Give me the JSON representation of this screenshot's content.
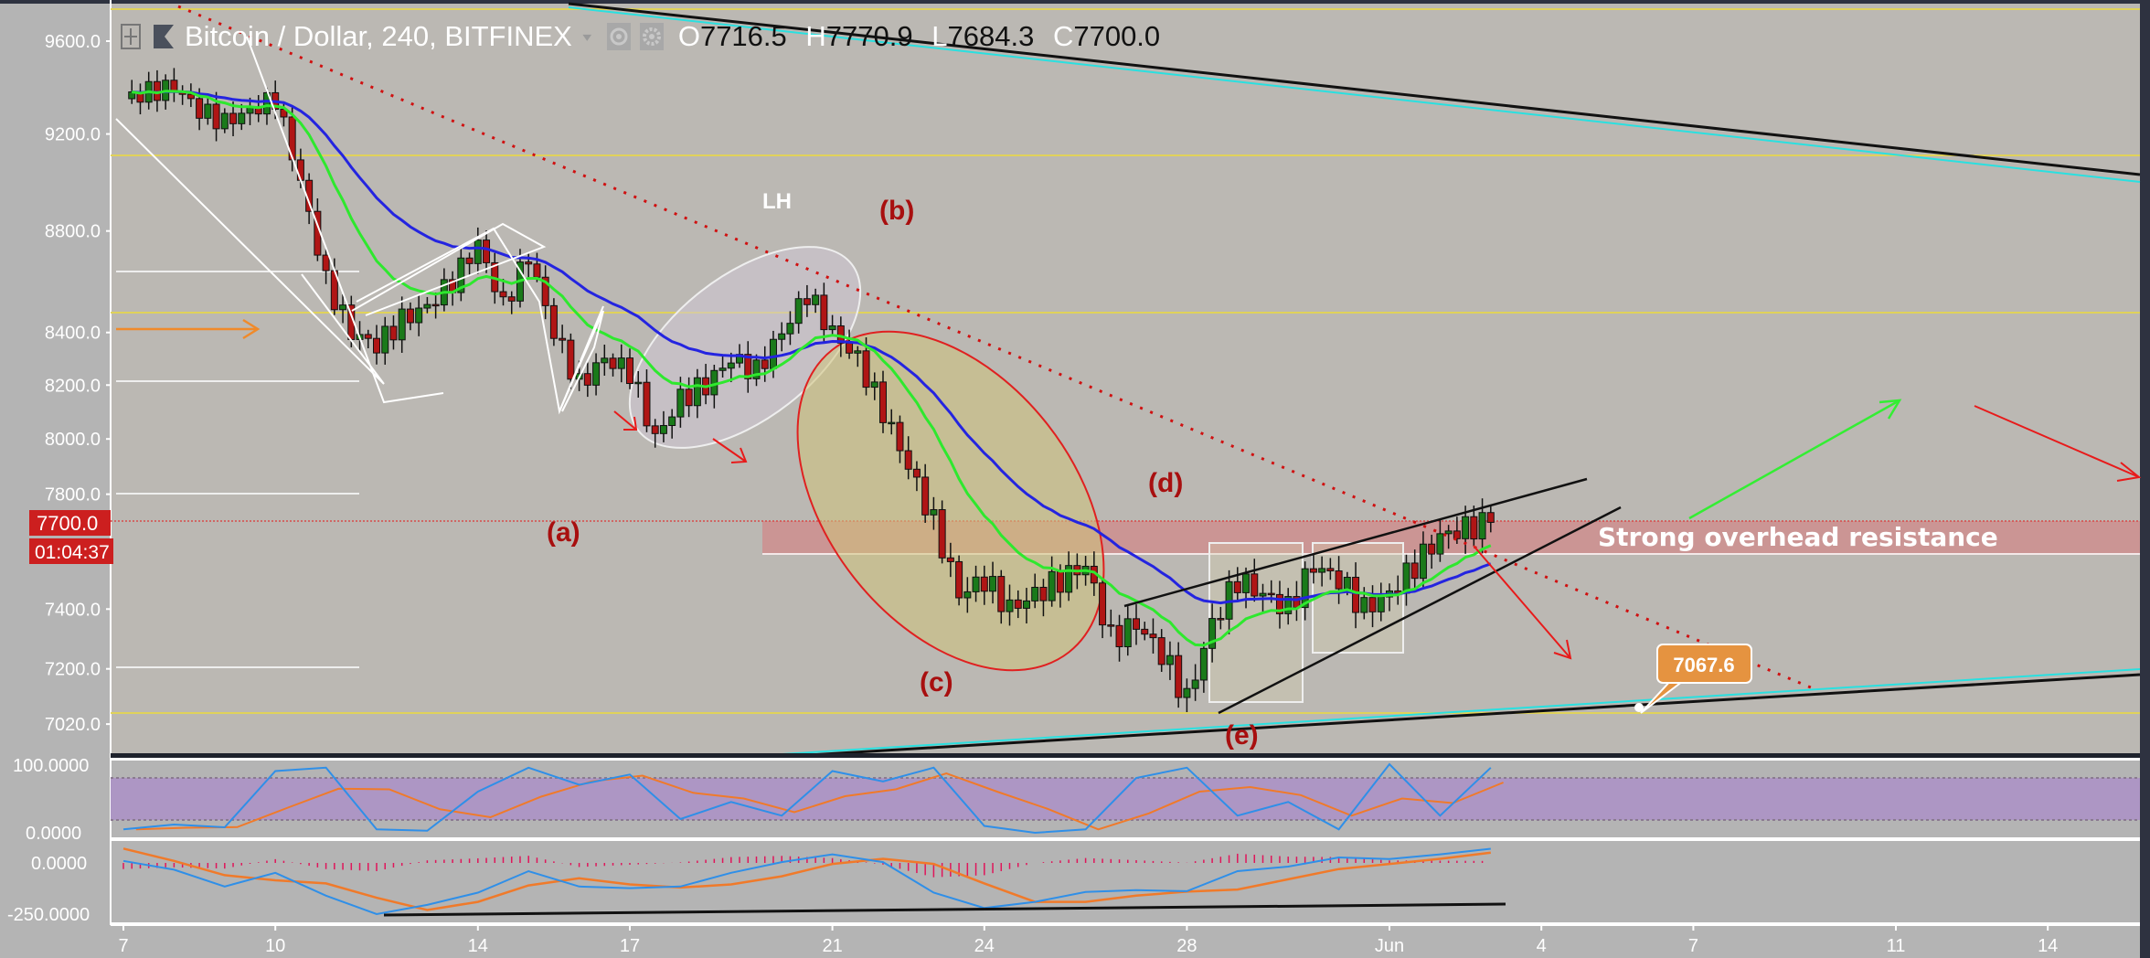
{
  "header": {
    "title": "Bitcoin / Dollar, 240, BITFINEX",
    "ohlc": {
      "o_label": "O",
      "o": "7716.5",
      "h_label": "H",
      "h": "7770.9",
      "l_label": "L",
      "l": "7684.3",
      "c_label": "C",
      "c": "7700.0"
    },
    "icons": [
      "plus-square-icon",
      "flag-icon",
      "dropdown-icon",
      "eye-icon",
      "gear-icon"
    ]
  },
  "price_tag": {
    "price": "7700.0",
    "countdown": "01:04:37"
  },
  "annotations": {
    "a": "(a)",
    "b": "(b)",
    "c": "(c)",
    "d": "(d)",
    "e": "(e)",
    "lh": "LH",
    "resistance": "Strong overhead resistance",
    "callout": "7067.6"
  },
  "colors": {
    "up": "#1a7a1a",
    "down": "#b01515",
    "ma_fast": "#2ee82e",
    "ma_slow": "#2424e0",
    "stoch_k": "#2f8fe8",
    "stoch_d": "#f07a2a",
    "macd_hist": "#e0155a",
    "resistance_zone": "#d08a8a",
    "callout": "#e59340",
    "trend_dotted": "#d01010"
  },
  "chart_data": [
    {
      "type": "candlestick",
      "title": "Bitcoin / Dollar, 240, BITFINEX",
      "y_scale": "log",
      "ylim": [
        7000,
        9700
      ],
      "y_ticks": [
        "9600.0",
        "9200.0",
        "8800.0",
        "8400.0",
        "8200.0",
        "8000.0",
        "7800.0",
        "7400.0",
        "7200.0",
        "7020.0"
      ],
      "x_ticks": [
        "7",
        "10",
        "14",
        "17",
        "21",
        "24",
        "28",
        "Jun",
        "4",
        "7",
        "11",
        "14"
      ],
      "x_tick_dates": [
        "May 7",
        "May 10",
        "May 14",
        "May 17",
        "May 21",
        "May 24",
        "May 28",
        "Jun 1",
        "Jun 4",
        "Jun 7",
        "Jun 11",
        "Jun 14"
      ],
      "close_path": {
        "days_from_may7": [
          0,
          0.5,
          1,
          1.5,
          2,
          2.5,
          3,
          3.5,
          4,
          4.5,
          5,
          5.5,
          6,
          6.5,
          7,
          7.5,
          8,
          8.5,
          9,
          9.5,
          10,
          10.5,
          11,
          11.5,
          12,
          12.5,
          13,
          13.5,
          14,
          14.5,
          15,
          15.5,
          16,
          16.5,
          17,
          17.5,
          18,
          18.5,
          19,
          19.5,
          20,
          20.5,
          21,
          21.5,
          22,
          22.5,
          23,
          23.5,
          24,
          24.5,
          25,
          25.5,
          26,
          26.5,
          27
        ],
        "price": [
          9350,
          9380,
          9400,
          9300,
          9250,
          9300,
          9350,
          9000,
          8600,
          8400,
          8350,
          8450,
          8500,
          8600,
          8750,
          8500,
          8700,
          8400,
          8200,
          8300,
          8250,
          8000,
          8150,
          8200,
          8300,
          8250,
          8400,
          8550,
          8400,
          8300,
          8100,
          7900,
          7700,
          7450,
          7500,
          7400,
          7450,
          7500,
          7550,
          7300,
          7350,
          7250,
          7100,
          7350,
          7500,
          7450,
          7400,
          7550,
          7500,
          7400,
          7450,
          7550,
          7650,
          7680,
          7700
        ]
      },
      "last_price": 7700.0,
      "resistance_zone": [
        7590,
        7700
      ]
    },
    {
      "type": "line",
      "title": "",
      "ylim": [
        0,
        100
      ],
      "y_ticks": [
        "100.0000",
        "0.0000"
      ],
      "band": [
        20,
        80
      ],
      "days_from_may7": [
        0,
        1,
        2,
        3,
        4,
        5,
        6,
        7,
        8,
        9,
        10,
        11,
        12,
        13,
        14,
        15,
        16,
        17,
        18,
        19,
        20,
        21,
        22,
        23,
        24,
        25,
        26,
        27
      ],
      "k": [
        5,
        12,
        8,
        90,
        95,
        5,
        3,
        60,
        95,
        70,
        85,
        20,
        45,
        25,
        90,
        75,
        95,
        10,
        0,
        5,
        80,
        95,
        25,
        45,
        5,
        100,
        25,
        95
      ]
    },
    {
      "type": "line",
      "title": "",
      "y_ticks": [
        "0.0000",
        "-250.0000"
      ],
      "days_from_may7": [
        0,
        1,
        2,
        3,
        4,
        5,
        6,
        7,
        8,
        9,
        10,
        11,
        12,
        13,
        14,
        15,
        16,
        17,
        18,
        19,
        20,
        21,
        22,
        23,
        24,
        25,
        26,
        27
      ],
      "macd": [
        10,
        -33,
        -115,
        -48,
        -160,
        -250,
        -205,
        -145,
        -40,
        -115,
        -123,
        -115,
        -48,
        4,
        42,
        4,
        -145,
        -220,
        -190,
        -142,
        -133,
        -138,
        -40,
        -18,
        27,
        19,
        42,
        69
      ],
      "signal": [
        70,
        10,
        -60,
        -85,
        -100,
        -170,
        -230,
        -190,
        -110,
        -75,
        -105,
        -120,
        -105,
        -65,
        -5,
        20,
        -5,
        -100,
        -190,
        -190,
        -160,
        -140,
        -130,
        -80,
        -30,
        -5,
        20,
        50
      ]
    }
  ]
}
